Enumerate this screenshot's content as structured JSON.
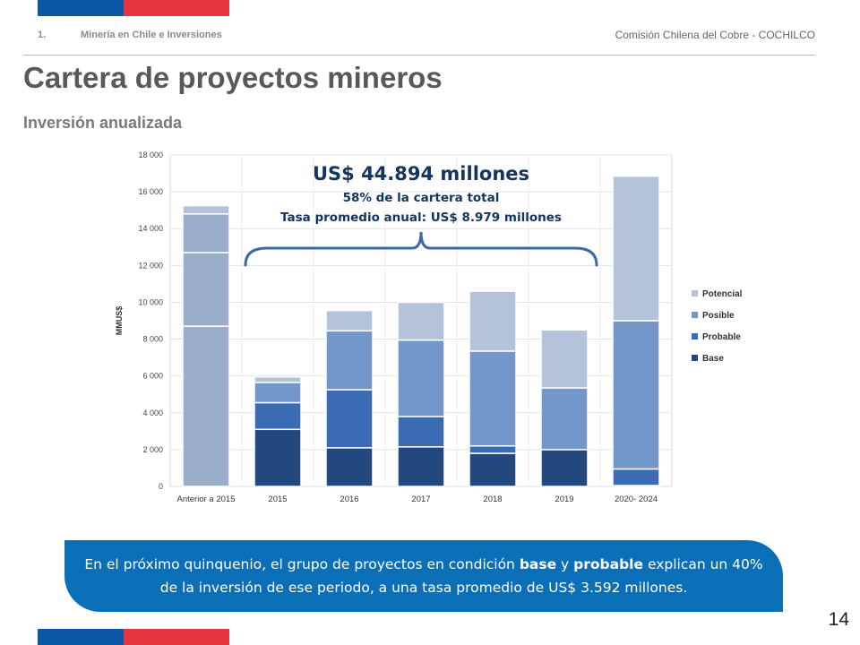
{
  "header": {
    "section_number": "1.",
    "section_title": "Minería en Chile e Inversiones",
    "organization": "Comisión Chilena del Cobre - COCHILCO"
  },
  "title": "Cartera de proyectos mineros",
  "subtitle": "Inversión anualizada",
  "colors": {
    "flag_blue": "#0b56a5",
    "flag_red": "#e63340",
    "callout_bg": "#0b6fb7",
    "base": "#23487f",
    "probable": "#3b6bb3",
    "posible": "#7497c9",
    "potencial": "#b4c3da",
    "old_projects": "#9aaecb"
  },
  "chart_data": {
    "type": "bar",
    "stacked": true,
    "ylabel": "MMUS$",
    "ylim": [
      0,
      18000
    ],
    "yticks": [
      "0",
      "2 000",
      "4 000",
      "6 000",
      "8 000",
      "10 000",
      "12 000",
      "14 000",
      "16 000",
      "18 000"
    ],
    "categories": [
      "Anterior a 2015",
      "2015",
      "2016",
      "2017",
      "2018",
      "2019",
      "2020- 2024"
    ],
    "series": [
      {
        "name": "Base",
        "values": [
          8700,
          3100,
          2100,
          2150,
          1800,
          2000,
          50
        ]
      },
      {
        "name": "Probable",
        "values": [
          4000,
          1450,
          3150,
          1650,
          400,
          0,
          900
        ]
      },
      {
        "name": "Posible",
        "values": [
          2100,
          1100,
          3200,
          4150,
          5150,
          3350,
          8050
        ]
      },
      {
        "name": "Potencial",
        "values": [
          450,
          300,
          1100,
          2050,
          3250,
          3150,
          7850
        ]
      }
    ],
    "legend_position": "right",
    "annotation": {
      "headline": "US$ 44.894 millones",
      "line1": "58% de la cartera total",
      "line2": "Tasa promedio anual: US$ 8.979 millones",
      "spans": [
        "2015",
        "2019"
      ]
    }
  },
  "callout": {
    "part1": "En el próximo quinquenio, el grupo de proyectos en condición ",
    "bold1": "base",
    "part2": " y ",
    "bold2": "probable",
    "part3": " explican un 40% de la inversión de ese periodo, a una tasa promedio de US$ 3.592 millones."
  },
  "page_number": "14"
}
